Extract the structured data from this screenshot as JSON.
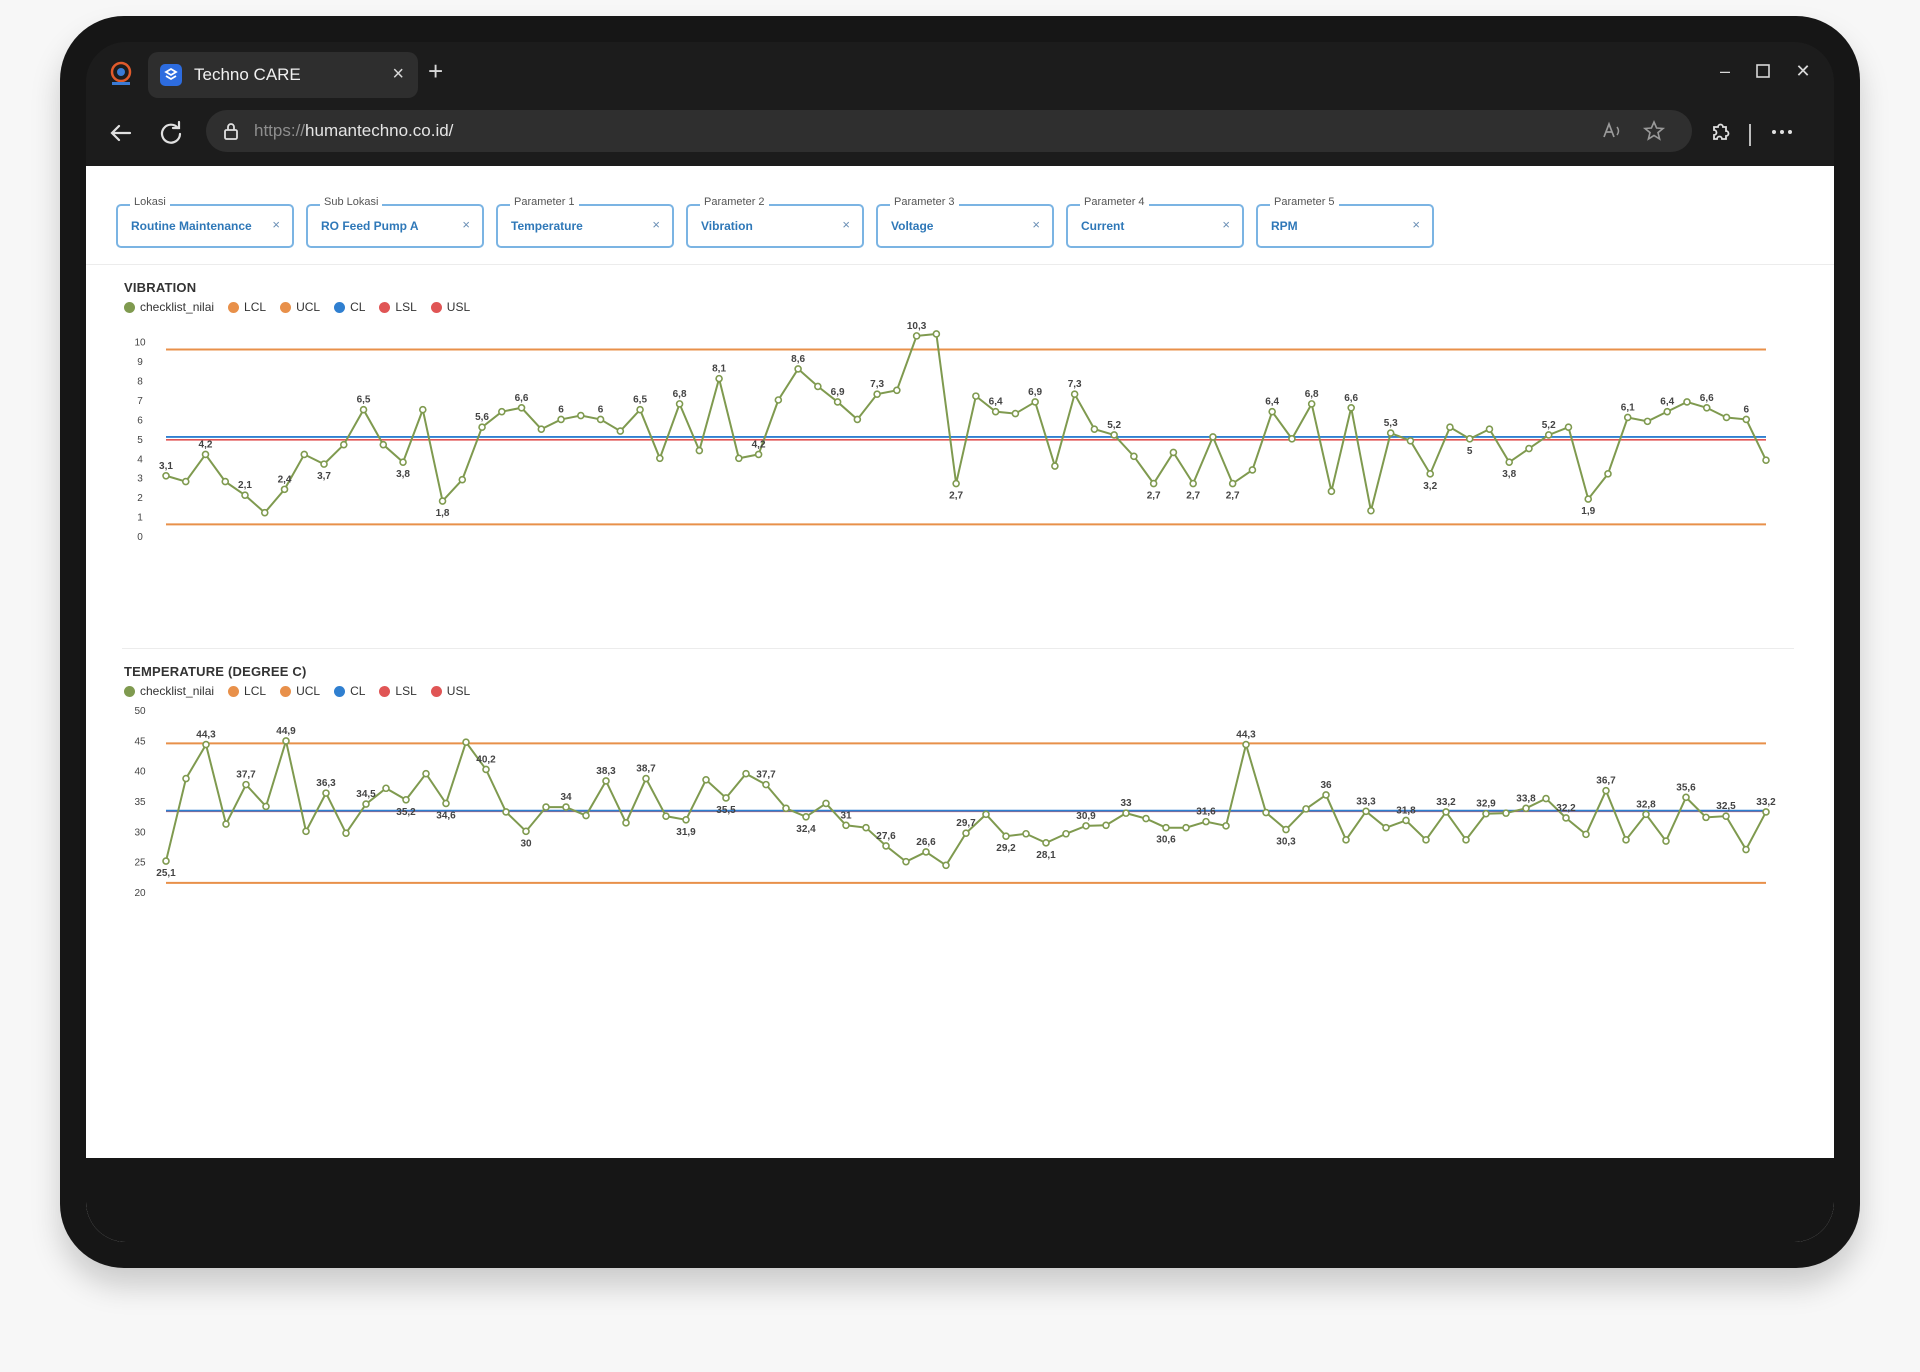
{
  "browser": {
    "tab_title": "Techno CARE",
    "url_scheme": "https://",
    "url_host": "humantechno.co.id/"
  },
  "filters": [
    {
      "label": "Lokasi",
      "value": "Routine Maintenance"
    },
    {
      "label": "Sub Lokasi",
      "value": "RO Feed Pump A"
    },
    {
      "label": "Parameter 1",
      "value": "Temperature"
    },
    {
      "label": "Parameter 2",
      "value": "Vibration"
    },
    {
      "label": "Parameter 3",
      "value": "Voltage"
    },
    {
      "label": "Parameter 4",
      "value": "Current"
    },
    {
      "label": "Parameter 5",
      "value": "RPM"
    }
  ],
  "colors": {
    "series": "#7f9a4f",
    "lcl": "#e8904a",
    "ucl": "#e8904a",
    "cl": "#2f7fd0",
    "lsl": "#e05555",
    "usl": "#e05555"
  },
  "legend": [
    "checklist_nilai",
    "LCL",
    "UCL",
    "CL",
    "LSL",
    "USL"
  ],
  "chart_data": [
    {
      "type": "line",
      "title": "VIBRATION",
      "series_name": "checklist_nilai",
      "yticks": [
        0,
        1,
        2,
        3,
        4,
        5,
        6,
        7,
        8,
        9,
        10
      ],
      "ylim": [
        0,
        10.5
      ],
      "limits": {
        "UCL": 9.6,
        "LCL": 0.6,
        "CL": 5.1,
        "LSL": 4.95
      },
      "values": [
        3.1,
        2.8,
        4.2,
        2.8,
        2.1,
        1.2,
        2.4,
        4.2,
        3.7,
        4.7,
        6.5,
        4.7,
        3.8,
        6.5,
        1.8,
        2.9,
        5.6,
        6.4,
        6.6,
        5.5,
        6,
        6.2,
        6,
        5.4,
        6.5,
        4,
        6.8,
        4.4,
        8.1,
        4,
        4.2,
        7,
        8.6,
        7.7,
        6.9,
        6,
        7.3,
        7.5,
        10.3,
        10.4,
        2.7,
        7.2,
        6.4,
        6.3,
        6.9,
        3.6,
        7.3,
        5.5,
        5.2,
        4.1,
        2.7,
        4.3,
        2.7,
        5.1,
        2.7,
        3.4,
        6.4,
        5,
        6.8,
        2.3,
        6.6,
        1.3,
        5.3,
        4.9,
        3.2,
        5.6,
        5,
        5.5,
        3.8,
        4.5,
        5.2,
        5.6,
        1.9,
        3.2,
        6.1,
        5.9,
        6.4,
        6.9,
        6.6,
        6.1,
        6,
        3.9
      ],
      "labels": {
        "0": "3,1",
        "2": "4,2",
        "4": "2,1",
        "6": "2,4",
        "8": "3,7",
        "10": "6,5",
        "12": "3,8",
        "14": "1,8",
        "16": "5,6",
        "18": "6,6",
        "20": "6",
        "22": "6",
        "24": "6,5",
        "26": "6,8",
        "28": "8,1",
        "30": "4,2",
        "32": "8,6",
        "34": "6,9",
        "36": "7,3",
        "38": "10,3",
        "40": "2,7",
        "42": "6,4",
        "44": "6,9",
        "46": "7,3",
        "48": "5,2",
        "50": "2,7",
        "52": "2,7",
        "54": "2,7",
        "56": "6,4",
        "58": "6,8",
        "60": "6,6",
        "62": "5,3",
        "64": "3,2",
        "66": "5",
        "68": "3,8",
        "70": "5,2",
        "72": "1,9",
        "74": "6,1",
        "76": "6,4",
        "78": "6,6",
        "80": "6"
      }
    },
    {
      "type": "line",
      "title": "TEMPERATURE (DEGREE C)",
      "series_name": "checklist_nilai",
      "yticks": [
        20,
        25,
        30,
        35,
        40,
        45,
        50
      ],
      "ylim": [
        20,
        50
      ],
      "limits": {
        "UCL": 44.5,
        "LCL": 21.5,
        "CL": 33.4,
        "LSL": 33.3
      },
      "values": [
        25.1,
        38.7,
        44.3,
        31.2,
        37.7,
        34.1,
        44.9,
        30,
        36.3,
        29.7,
        34.5,
        37.1,
        35.2,
        39.5,
        34.6,
        44.7,
        40.2,
        33.2,
        30,
        34,
        34,
        32.6,
        38.3,
        31.4,
        38.7,
        32.5,
        31.9,
        38.5,
        35.5,
        39.5,
        37.7,
        33.8,
        32.4,
        34.6,
        31,
        30.6,
        27.6,
        25,
        26.6,
        24.4,
        29.7,
        32.8,
        29.2,
        29.6,
        28.1,
        29.6,
        30.9,
        31,
        33,
        32.1,
        30.6,
        30.6,
        31.6,
        30.9,
        44.3,
        33.1,
        30.3,
        33.7,
        36,
        28.6,
        33.3,
        30.6,
        31.8,
        28.6,
        33.2,
        28.6,
        32.9,
        33,
        33.8,
        35.4,
        32.2,
        29.5,
        36.7,
        28.6,
        32.8,
        28.4,
        35.6,
        32.3,
        32.5,
        27,
        33.2
      ],
      "labels": {
        "0": "25,1",
        "2": "44,3",
        "4": "37,7",
        "6": "44,9",
        "8": "36,3",
        "10": "34,5",
        "12": "35,2",
        "14": "34,6",
        "16": "40,2",
        "18": "30",
        "20": "34",
        "22": "38,3",
        "24": "38,7",
        "26": "31,9",
        "28": "35,5",
        "30": "37,7",
        "32": "32,4",
        "34": "31",
        "36": "27,6",
        "38": "26,6",
        "40": "29,7",
        "42": "29,2",
        "44": "28,1",
        "46": "30,9",
        "48": "33",
        "50": "30,6",
        "52": "31,6",
        "54": "44,3",
        "56": "30,3",
        "58": "36",
        "60": "33,3",
        "62": "31,8",
        "64": "33,2",
        "66": "32,9",
        "68": "33,8",
        "70": "32,2",
        "72": "36,7",
        "74": "32,8",
        "76": "35,6",
        "78": "32,5",
        "80": "33,2"
      }
    }
  ]
}
